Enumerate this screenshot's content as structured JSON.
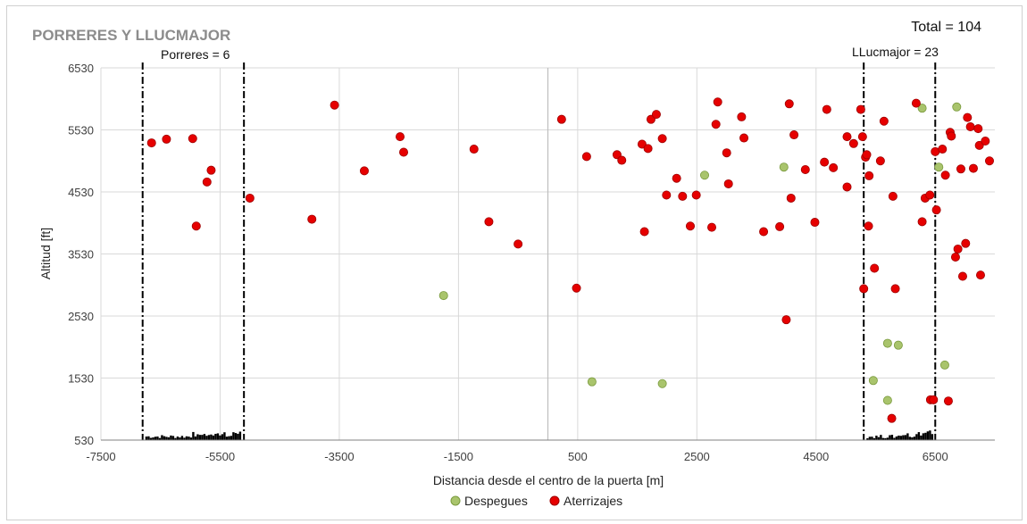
{
  "chart_data": {
    "type": "scatter",
    "title": "PORRERES  Y LLUCMAJOR",
    "xlabel": "Distancia desde el centro de la puerta [m]",
    "ylabel": "Altitud [ft]",
    "xlim": [
      -7500,
      7500
    ],
    "ylim": [
      530,
      6530
    ],
    "xticks": [
      -7500,
      -5500,
      -3500,
      -1500,
      500,
      2500,
      4500,
      6500
    ],
    "yticks": [
      530,
      1530,
      2530,
      3530,
      4530,
      5530,
      6530
    ],
    "grid": true,
    "legend_position": "bottom",
    "annotations": {
      "total": "Total = 104",
      "porreres": "Porreres = 6",
      "llucmajor": "LLucmajor = 23"
    },
    "gate_lines": [
      {
        "name": "porreres-left",
        "x": -6800
      },
      {
        "name": "porreres-right",
        "x": -5100
      },
      {
        "name": "llucmajor-left",
        "x": 5300
      },
      {
        "name": "llucmajor-right",
        "x": 6500
      }
    ],
    "series": [
      {
        "name": "Despegues",
        "color": "#a9c46c",
        "edge": "#7a9a3e",
        "points": [
          [
            -1750,
            2860
          ],
          [
            740,
            1470
          ],
          [
            1920,
            1440
          ],
          [
            2630,
            4800
          ],
          [
            3960,
            4930
          ],
          [
            5460,
            1490
          ],
          [
            5700,
            1170
          ],
          [
            5700,
            2090
          ],
          [
            5880,
            2060
          ],
          [
            6280,
            5880
          ],
          [
            6560,
            4930
          ],
          [
            6660,
            1740
          ],
          [
            6860,
            5900
          ]
        ]
      },
      {
        "name": "Aterrizajes",
        "color": "#e60000",
        "edge": "#9e0000",
        "points": [
          [
            -6650,
            5320
          ],
          [
            -6400,
            5380
          ],
          [
            -5960,
            5390
          ],
          [
            -5900,
            3980
          ],
          [
            -5720,
            4690
          ],
          [
            -5650,
            4880
          ],
          [
            -5000,
            4430
          ],
          [
            -3960,
            4090
          ],
          [
            -3580,
            5930
          ],
          [
            -3080,
            4870
          ],
          [
            -2480,
            5420
          ],
          [
            -2420,
            5170
          ],
          [
            -1240,
            5220
          ],
          [
            -990,
            4050
          ],
          [
            -500,
            3690
          ],
          [
            230,
            5700
          ],
          [
            480,
            2980
          ],
          [
            650,
            5100
          ],
          [
            1160,
            5130
          ],
          [
            1240,
            5040
          ],
          [
            1580,
            5300
          ],
          [
            1620,
            3890
          ],
          [
            1680,
            5230
          ],
          [
            1730,
            5700
          ],
          [
            1820,
            5780
          ],
          [
            1920,
            5390
          ],
          [
            1990,
            4480
          ],
          [
            2160,
            4750
          ],
          [
            2260,
            4460
          ],
          [
            2390,
            3980
          ],
          [
            2490,
            4480
          ],
          [
            2750,
            3960
          ],
          [
            2820,
            5620
          ],
          [
            2850,
            5980
          ],
          [
            3000,
            5160
          ],
          [
            3030,
            4660
          ],
          [
            3250,
            5740
          ],
          [
            3290,
            5400
          ],
          [
            3620,
            3890
          ],
          [
            3890,
            3970
          ],
          [
            4000,
            2470
          ],
          [
            4050,
            5950
          ],
          [
            4080,
            4430
          ],
          [
            4130,
            5450
          ],
          [
            4320,
            4890
          ],
          [
            4480,
            4040
          ],
          [
            4640,
            5010
          ],
          [
            4680,
            5860
          ],
          [
            4790,
            4920
          ],
          [
            5020,
            4610
          ],
          [
            5020,
            5420
          ],
          [
            5130,
            5310
          ],
          [
            5250,
            5860
          ],
          [
            5280,
            5420
          ],
          [
            5300,
            2970
          ],
          [
            5330,
            5090
          ],
          [
            5350,
            5130
          ],
          [
            5380,
            3980
          ],
          [
            5390,
            4790
          ],
          [
            5480,
            3300
          ],
          [
            5580,
            5030
          ],
          [
            5640,
            5670
          ],
          [
            5770,
            880
          ],
          [
            5790,
            4460
          ],
          [
            5830,
            2970
          ],
          [
            6180,
            5960
          ],
          [
            6280,
            4050
          ],
          [
            6330,
            4430
          ],
          [
            6410,
            4480
          ],
          [
            6420,
            1180
          ],
          [
            6470,
            1180
          ],
          [
            6500,
            5180
          ],
          [
            6520,
            4240
          ],
          [
            6620,
            5220
          ],
          [
            6670,
            4800
          ],
          [
            6720,
            1160
          ],
          [
            6750,
            5490
          ],
          [
            6770,
            5430
          ],
          [
            6840,
            3480
          ],
          [
            6880,
            3610
          ],
          [
            6930,
            4900
          ],
          [
            6960,
            3170
          ],
          [
            7010,
            3700
          ],
          [
            7040,
            5730
          ],
          [
            7090,
            5580
          ],
          [
            7140,
            4910
          ],
          [
            7220,
            5550
          ],
          [
            7240,
            5280
          ],
          [
            7260,
            3190
          ],
          [
            7340,
            5350
          ],
          [
            7410,
            5030
          ]
        ]
      }
    ]
  }
}
